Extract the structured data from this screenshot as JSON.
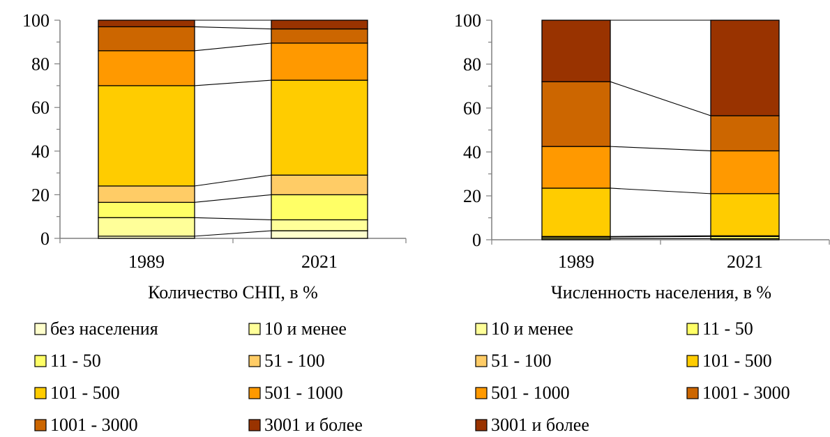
{
  "chart_data": [
    {
      "type": "bar",
      "stacked": true,
      "title": "Количество СНП, в %",
      "categories": [
        "1989",
        "2021"
      ],
      "ylim": [
        0,
        100
      ],
      "yticks": [
        "0",
        "20",
        "40",
        "60",
        "80",
        "100"
      ],
      "grid": false,
      "legend_position": "bottom",
      "connector_lines": true,
      "series": [
        {
          "name": "без населения",
          "color": "#FFFFCC",
          "values": [
            1,
            3.5
          ]
        },
        {
          "name": "10 и менее",
          "color": "#FFFF99",
          "values": [
            8.5,
            5
          ]
        },
        {
          "name": "11 - 50",
          "color": "#FFFF66",
          "values": [
            7,
            11.5
          ]
        },
        {
          "name": "51 - 100",
          "color": "#FFCC66",
          "values": [
            7.5,
            9
          ]
        },
        {
          "name": "101 - 500",
          "color": "#FFCC00",
          "values": [
            46,
            43.5
          ]
        },
        {
          "name": "501 - 1000",
          "color": "#FF9900",
          "values": [
            16,
            17
          ]
        },
        {
          "name": "1001 - 3000",
          "color": "#CC6600",
          "values": [
            11,
            6.5
          ]
        },
        {
          "name": "3001 и более",
          "color": "#993300",
          "values": [
            3,
            4
          ]
        }
      ]
    },
    {
      "type": "bar",
      "stacked": true,
      "title": "Численность населения, в %",
      "categories": [
        "1989",
        "2021"
      ],
      "ylim": [
        0,
        100
      ],
      "yticks": [
        "0",
        "20",
        "40",
        "60",
        "80",
        "100"
      ],
      "grid": false,
      "legend_position": "bottom",
      "connector_lines": true,
      "series": [
        {
          "name": "10 и менее",
          "color": "#FFFF99",
          "values": [
            0.5,
            0.5
          ]
        },
        {
          "name": "11 - 50",
          "color": "#FFFF66",
          "values": [
            0.7,
            1
          ]
        },
        {
          "name": "51 - 100",
          "color": "#FFCC66",
          "values": [
            0.3,
            0.3
          ]
        },
        {
          "name": "101 - 500",
          "color": "#FFCC00",
          "values": [
            22,
            19.2
          ]
        },
        {
          "name": "501 - 1000",
          "color": "#FF9900",
          "values": [
            19,
            19.5
          ]
        },
        {
          "name": "1001 - 3000",
          "color": "#CC6600",
          "values": [
            29.5,
            16
          ]
        },
        {
          "name": "3001 и более",
          "color": "#993300",
          "values": [
            28,
            43.5
          ]
        }
      ]
    }
  ]
}
